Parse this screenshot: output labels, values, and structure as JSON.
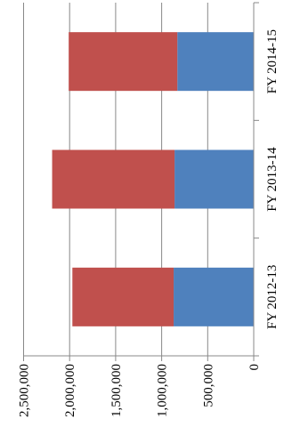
{
  "chart_data": {
    "type": "bar",
    "orientation": "horizontal-stacked",
    "rotation": "rotated 90 degrees clockwise",
    "title": "",
    "xlabel": "",
    "ylabel": "",
    "categories": [
      "FY 2012-13",
      "FY 2013-14",
      "FY 2014-15"
    ],
    "series": [
      {
        "color": "#4f81bd",
        "values": [
          870000,
          860000,
          830000
        ]
      },
      {
        "color": "#c0504d",
        "values": [
          1100000,
          1330000,
          1180000
        ]
      }
    ],
    "value_ticks": [
      0,
      500000,
      1000000,
      1500000,
      2000000,
      2500000
    ],
    "value_tick_labels": [
      "0",
      "500,000",
      "1,000,000",
      "1,500,000",
      "2,000,000",
      "2,500,000"
    ],
    "ylim": [
      0,
      2500000
    ],
    "grid": true,
    "legend": "none"
  }
}
